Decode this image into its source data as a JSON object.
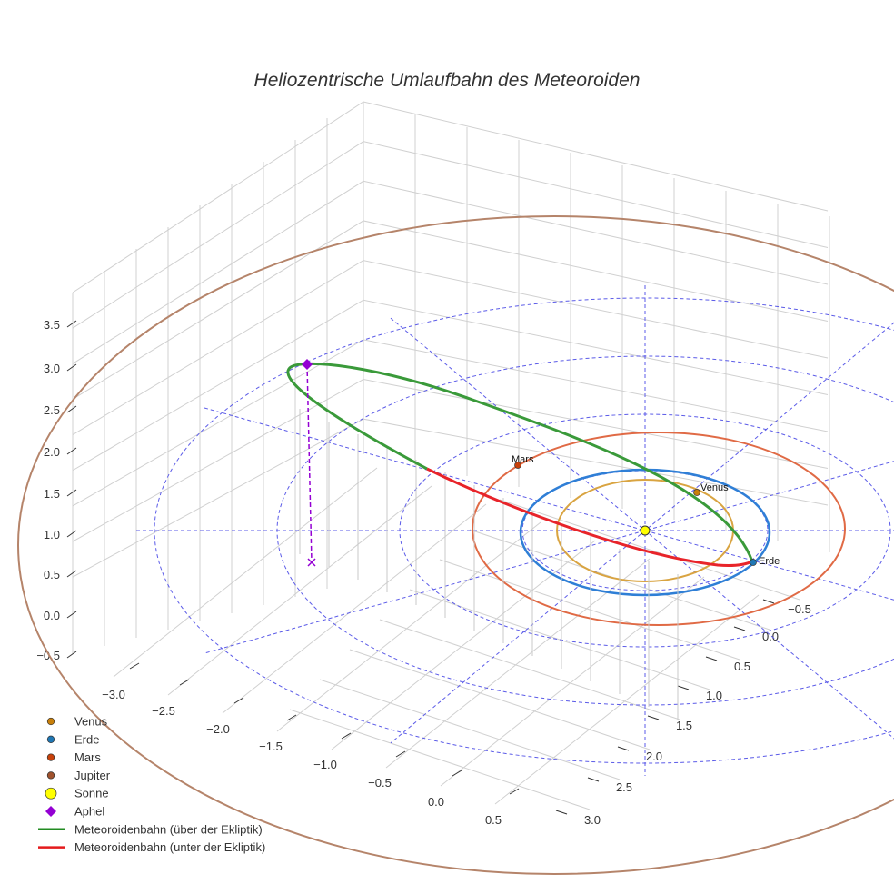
{
  "chart_data": {
    "type": "scatter3d",
    "title": "Heliozentrische Umlaufbahn des Meteoroiden",
    "z_ticks": [
      "3.5",
      "3.0",
      "2.5",
      "2.0",
      "1.5",
      "1.0",
      "0.5",
      "0.0",
      "−0.5"
    ],
    "x_ticks": [
      "−3.0",
      "−2.5",
      "−2.0",
      "−1.5",
      "−1.0",
      "−0.5",
      "0.0",
      "0.5"
    ],
    "y_ticks": [
      "−0.5",
      "0.0",
      "0.5",
      "1.0",
      "1.5",
      "2.0",
      "2.5",
      "3.0"
    ],
    "zlim": [
      -0.5,
      3.5
    ],
    "xlim": [
      -3.0,
      0.5
    ],
    "ylim": [
      -0.5,
      3.0
    ],
    "point_labels": {
      "venus": "Venus",
      "erde": "Erde",
      "mars": "Mars"
    },
    "legend": [
      {
        "name": "Venus",
        "color": "#c87f0a",
        "marker": "circle"
      },
      {
        "name": "Erde",
        "color": "#1f77b4",
        "marker": "circle"
      },
      {
        "name": "Mars",
        "color": "#c8410a",
        "marker": "circle"
      },
      {
        "name": "Jupiter",
        "color": "#a0522d",
        "marker": "circle"
      },
      {
        "name": "Sonne",
        "color": "#ffff00",
        "marker": "circle-large"
      },
      {
        "name": "Aphel",
        "color": "#9400d3",
        "marker": "diamond"
      },
      {
        "name": "Meteoroidenbahn (über der Ekliptik)",
        "color": "#228b22",
        "marker": "line"
      },
      {
        "name": "Meteoroidenbahn (unter der Ekliptik)",
        "color": "#e41a1c",
        "marker": "line"
      }
    ],
    "orbit_colors": {
      "venus": "#d9a441",
      "erde": "#2f7fd6",
      "mars": "#e06a45",
      "jupiter": "#b5846a",
      "grid": "#5b5be8"
    }
  }
}
